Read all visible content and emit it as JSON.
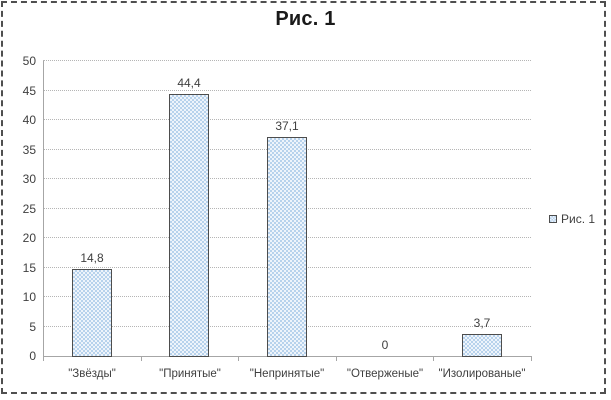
{
  "title": "Рис. 1",
  "legend": {
    "label": "Рис. 1"
  },
  "chart_data": {
    "type": "bar",
    "title": "Рис. 1",
    "categories": [
      "\"Звёзды\"",
      "\"Принятые\"",
      "\"Непринятые\"",
      "\"Отверженые\"",
      "\"Изолированые\""
    ],
    "values": [
      14.8,
      44.4,
      37.1,
      0,
      3.7
    ],
    "value_labels": [
      "14,8",
      "44,4",
      "37,1",
      "0",
      "3,7"
    ],
    "xlabel": "",
    "ylabel": "",
    "y_axis": {
      "min": 0,
      "max": 50,
      "step": 5,
      "tick_labels": [
        "0",
        "5",
        "10",
        "15",
        "20",
        "25",
        "30",
        "35",
        "40",
        "45",
        "50"
      ]
    },
    "grid": true,
    "legend_entries": [
      "Рис. 1"
    ],
    "legend_position": "middle-right",
    "colors": {
      "bar_fill_base": "#eef4fb",
      "bar_fill_dot": "#b7d2ec",
      "bar_border": "#4d4d4d",
      "gridline": "#b5b5b5",
      "axis": "#a6a6a6",
      "text": "#3f3f3f",
      "title_text": "#1a1a1a",
      "frame_border": "#4f4f4f",
      "background": "#ffffff"
    }
  }
}
